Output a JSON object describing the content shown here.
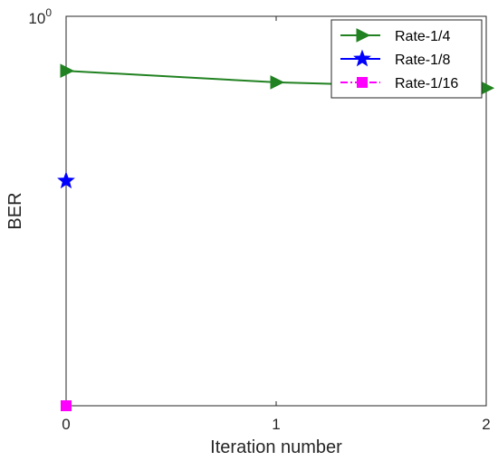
{
  "chart_data": {
    "type": "line",
    "xlabel": "Iteration number",
    "ylabel": "BER",
    "y_scale": "log",
    "ylim": [
      0.001,
      1
    ],
    "xlim": [
      0,
      2
    ],
    "x_ticks": [
      0,
      1,
      2
    ],
    "x_tick_labels": [
      "0",
      "1",
      "2"
    ],
    "y_tick_label": {
      "base": "10",
      "exponent": "0"
    },
    "grid": false,
    "legend_position": "top-right",
    "series": [
      {
        "name": "Rate-1/4",
        "color": "#218221",
        "marker": "triangle-right",
        "line_style": "solid",
        "x": [
          0,
          1,
          2
        ],
        "y": [
          0.38,
          0.31,
          0.28
        ]
      },
      {
        "name": "Rate-1/8",
        "color": "#0000ff",
        "marker": "star",
        "line_style": "solid",
        "x": [
          0
        ],
        "y": [
          0.054
        ]
      },
      {
        "name": "Rate-1/16",
        "color": "#ff00ff",
        "marker": "square",
        "line_style": "dash-dot",
        "x": [
          0
        ],
        "y": [
          0.001
        ]
      }
    ]
  }
}
